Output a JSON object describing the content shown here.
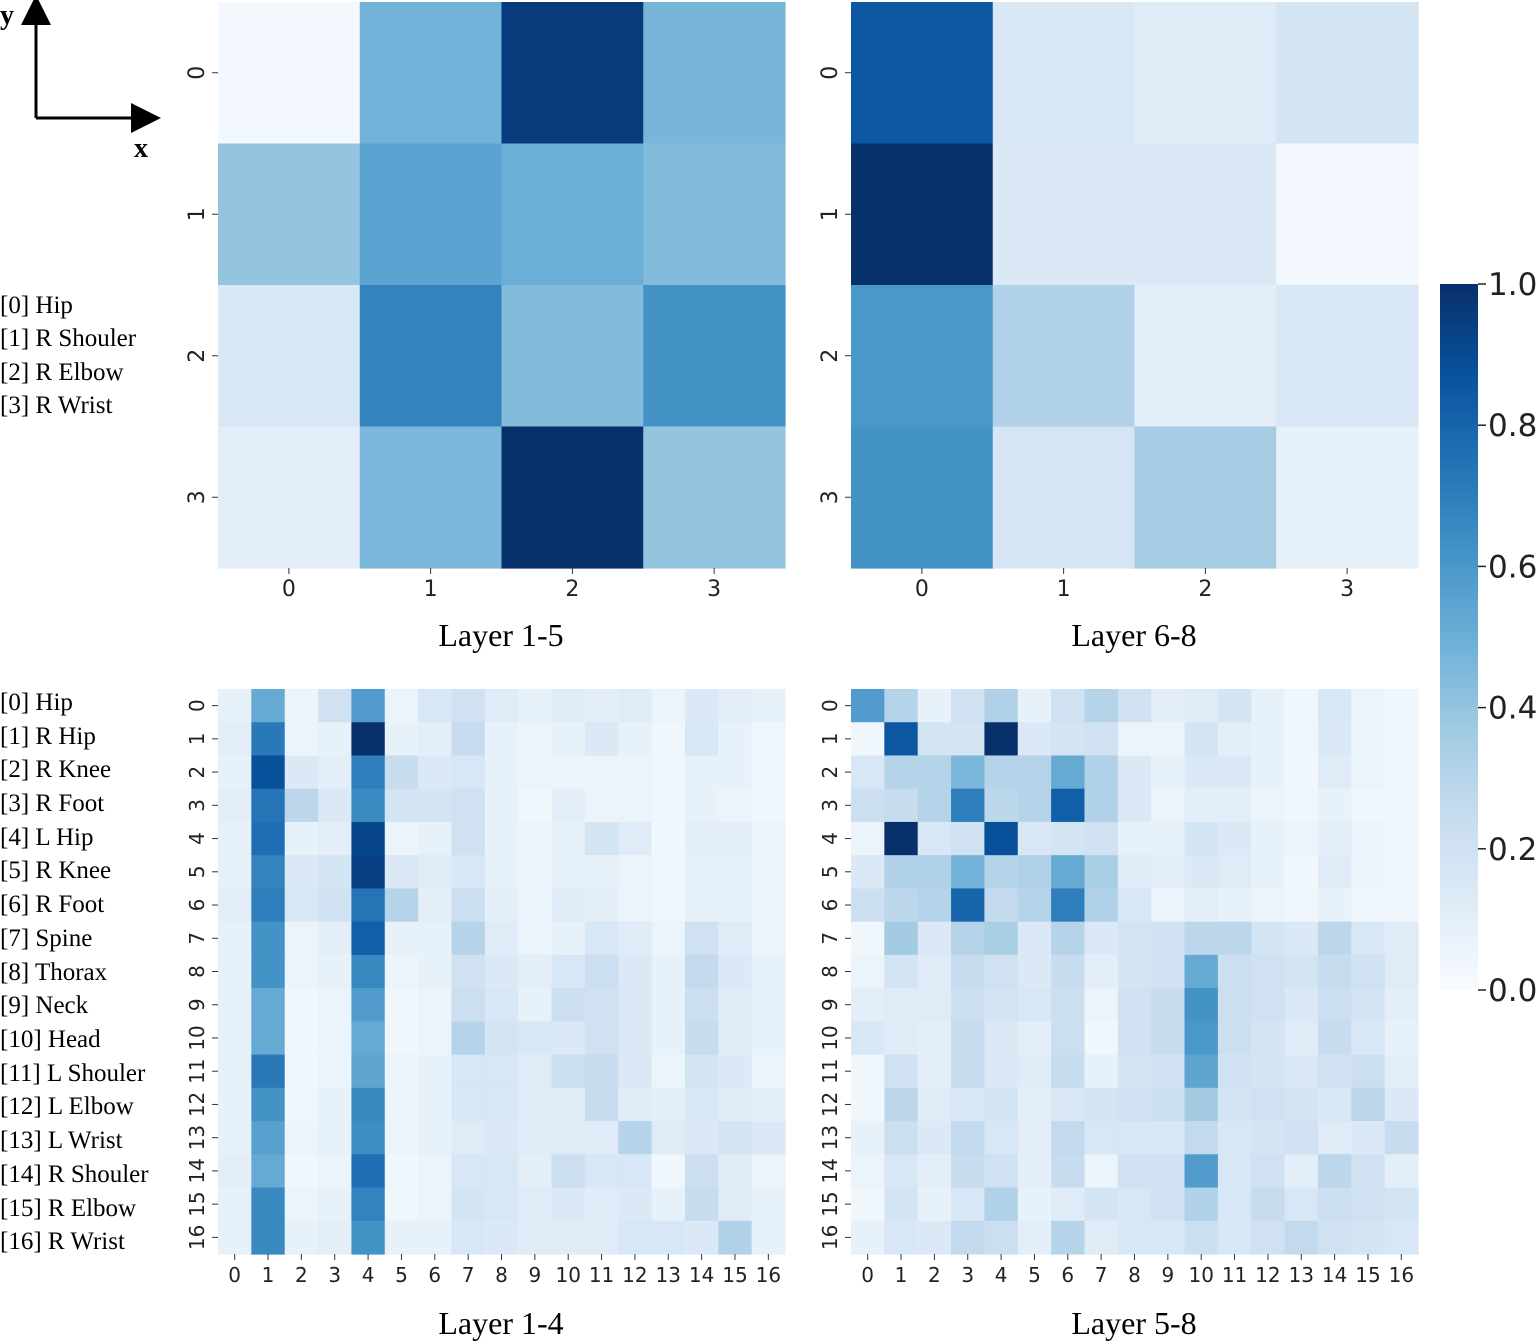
{
  "axis_indicator": {
    "y_label": "y",
    "x_label": "x"
  },
  "legends": {
    "small": [
      "[0] Hip",
      "[1] R Shouler",
      "[2] R Elbow",
      "[3] R Wrist"
    ],
    "large": [
      "[0] Hip",
      "[1] R Hip",
      "[2] R Knee",
      "[3] R Foot",
      "[4] L Hip",
      "[5] R Knee",
      "[6] R Foot",
      "[7] Spine",
      "[8] Thorax",
      "[9] Neck",
      "[10] Head",
      "[11] L Shouler",
      "[12] L Elbow",
      "[13] L Wrist",
      "[14] R Shouler",
      "[15] R Elbow",
      "[16] R Wrist"
    ]
  },
  "colorbar": {
    "min": 0.0,
    "max": 1.0,
    "ticks": [
      {
        "v": 1.0,
        "label": "1.0"
      },
      {
        "v": 0.8,
        "label": "0.8"
      },
      {
        "v": 0.6,
        "label": "0.6"
      },
      {
        "v": 0.4,
        "label": "0.4"
      },
      {
        "v": 0.2,
        "label": "0.2"
      },
      {
        "v": 0.0,
        "label": "0.0"
      }
    ],
    "colors": [
      "#f7fbff",
      "#deebf7",
      "#c6dbef",
      "#9ecae1",
      "#6baed6",
      "#4292c6",
      "#2171b5",
      "#08519c",
      "#08306b"
    ]
  },
  "chart_data": [
    {
      "type": "heatmap",
      "title": "Layer 1-5",
      "x_ticks": [
        "0",
        "1",
        "2",
        "3"
      ],
      "y_ticks": [
        "0",
        "1",
        "2",
        "3"
      ],
      "values": [
        [
          0.02,
          0.48,
          0.96,
          0.47
        ],
        [
          0.4,
          0.55,
          0.5,
          0.44
        ],
        [
          0.15,
          0.68,
          0.44,
          0.62
        ],
        [
          0.1,
          0.46,
          1.0,
          0.4
        ]
      ]
    },
    {
      "type": "heatmap",
      "title": "Layer 6-8",
      "x_ticks": [
        "0",
        "1",
        "2",
        "3"
      ],
      "y_ticks": [
        "0",
        "1",
        "2",
        "3"
      ],
      "values": [
        [
          0.85,
          0.15,
          0.12,
          0.18
        ],
        [
          1.0,
          0.14,
          0.14,
          0.03
        ],
        [
          0.6,
          0.32,
          0.1,
          0.16
        ],
        [
          0.62,
          0.17,
          0.35,
          0.08
        ]
      ]
    },
    {
      "type": "heatmap",
      "title": "Layer 1-4",
      "x_ticks": [
        "0",
        "1",
        "2",
        "3",
        "4",
        "5",
        "6",
        "7",
        "8",
        "9",
        "10",
        "11",
        "12",
        "13",
        "14",
        "15",
        "16"
      ],
      "y_ticks": [
        "0",
        "1",
        "2",
        "3",
        "4",
        "5",
        "6",
        "7",
        "8",
        "9",
        "10",
        "11",
        "12",
        "13",
        "14",
        "15",
        "16"
      ],
      "values": [
        [
          0.08,
          0.52,
          0.06,
          0.2,
          0.58,
          0.06,
          0.16,
          0.2,
          0.12,
          0.08,
          0.12,
          0.1,
          0.12,
          0.06,
          0.14,
          0.1,
          0.08
        ],
        [
          0.1,
          0.72,
          0.06,
          0.08,
          1.0,
          0.08,
          0.1,
          0.25,
          0.08,
          0.06,
          0.08,
          0.14,
          0.08,
          0.04,
          0.16,
          0.08,
          0.04
        ],
        [
          0.08,
          0.88,
          0.14,
          0.1,
          0.7,
          0.24,
          0.14,
          0.16,
          0.08,
          0.06,
          0.06,
          0.06,
          0.06,
          0.04,
          0.08,
          0.08,
          0.04
        ],
        [
          0.1,
          0.74,
          0.28,
          0.14,
          0.65,
          0.18,
          0.18,
          0.2,
          0.08,
          0.04,
          0.1,
          0.06,
          0.06,
          0.04,
          0.08,
          0.06,
          0.04
        ],
        [
          0.08,
          0.76,
          0.08,
          0.1,
          0.92,
          0.06,
          0.08,
          0.2,
          0.08,
          0.06,
          0.08,
          0.18,
          0.12,
          0.04,
          0.1,
          0.1,
          0.06
        ],
        [
          0.08,
          0.68,
          0.14,
          0.18,
          0.94,
          0.14,
          0.12,
          0.16,
          0.08,
          0.06,
          0.08,
          0.08,
          0.06,
          0.04,
          0.08,
          0.08,
          0.06
        ],
        [
          0.1,
          0.7,
          0.16,
          0.2,
          0.74,
          0.3,
          0.1,
          0.22,
          0.1,
          0.06,
          0.12,
          0.1,
          0.06,
          0.04,
          0.08,
          0.08,
          0.06
        ],
        [
          0.08,
          0.62,
          0.06,
          0.1,
          0.82,
          0.08,
          0.08,
          0.3,
          0.12,
          0.06,
          0.08,
          0.16,
          0.12,
          0.06,
          0.2,
          0.12,
          0.06
        ],
        [
          0.08,
          0.62,
          0.06,
          0.08,
          0.66,
          0.06,
          0.08,
          0.2,
          0.14,
          0.1,
          0.16,
          0.22,
          0.14,
          0.08,
          0.26,
          0.14,
          0.08
        ],
        [
          0.08,
          0.52,
          0.04,
          0.06,
          0.58,
          0.04,
          0.06,
          0.22,
          0.16,
          0.08,
          0.22,
          0.2,
          0.14,
          0.08,
          0.22,
          0.12,
          0.08
        ],
        [
          0.08,
          0.52,
          0.04,
          0.06,
          0.52,
          0.04,
          0.06,
          0.3,
          0.18,
          0.16,
          0.14,
          0.2,
          0.14,
          0.08,
          0.24,
          0.12,
          0.08
        ],
        [
          0.08,
          0.72,
          0.04,
          0.06,
          0.54,
          0.06,
          0.08,
          0.16,
          0.16,
          0.12,
          0.22,
          0.24,
          0.14,
          0.06,
          0.18,
          0.14,
          0.06
        ],
        [
          0.08,
          0.62,
          0.04,
          0.08,
          0.66,
          0.06,
          0.08,
          0.16,
          0.16,
          0.12,
          0.12,
          0.24,
          0.12,
          0.1,
          0.16,
          0.12,
          0.1
        ],
        [
          0.08,
          0.56,
          0.06,
          0.08,
          0.64,
          0.06,
          0.08,
          0.12,
          0.14,
          0.12,
          0.12,
          0.12,
          0.3,
          0.12,
          0.14,
          0.18,
          0.14
        ],
        [
          0.1,
          0.52,
          0.04,
          0.06,
          0.76,
          0.04,
          0.06,
          0.16,
          0.16,
          0.1,
          0.22,
          0.16,
          0.16,
          0.04,
          0.22,
          0.12,
          0.06
        ],
        [
          0.08,
          0.66,
          0.06,
          0.08,
          0.68,
          0.04,
          0.06,
          0.18,
          0.16,
          0.12,
          0.14,
          0.12,
          0.14,
          0.08,
          0.24,
          0.12,
          0.08
        ],
        [
          0.08,
          0.66,
          0.08,
          0.1,
          0.62,
          0.08,
          0.08,
          0.16,
          0.14,
          0.12,
          0.12,
          0.12,
          0.16,
          0.16,
          0.14,
          0.32,
          0.08
        ]
      ]
    },
    {
      "type": "heatmap",
      "title": "Layer 5-8",
      "x_ticks": [
        "0",
        "1",
        "2",
        "3",
        "4",
        "5",
        "6",
        "7",
        "8",
        "9",
        "10",
        "11",
        "12",
        "13",
        "14",
        "15",
        "16"
      ],
      "y_ticks": [
        "0",
        "1",
        "2",
        "3",
        "4",
        "5",
        "6",
        "7",
        "8",
        "9",
        "10",
        "11",
        "12",
        "13",
        "14",
        "15",
        "16"
      ],
      "values": [
        [
          0.58,
          0.3,
          0.08,
          0.2,
          0.32,
          0.08,
          0.2,
          0.3,
          0.2,
          0.1,
          0.12,
          0.18,
          0.08,
          0.04,
          0.16,
          0.06,
          0.04
        ],
        [
          0.04,
          0.85,
          0.18,
          0.18,
          1.0,
          0.14,
          0.18,
          0.2,
          0.06,
          0.06,
          0.18,
          0.1,
          0.08,
          0.04,
          0.14,
          0.06,
          0.04
        ],
        [
          0.16,
          0.3,
          0.3,
          0.46,
          0.3,
          0.3,
          0.52,
          0.32,
          0.14,
          0.08,
          0.14,
          0.14,
          0.08,
          0.04,
          0.12,
          0.06,
          0.04
        ],
        [
          0.22,
          0.24,
          0.3,
          0.7,
          0.28,
          0.3,
          0.82,
          0.32,
          0.14,
          0.06,
          0.1,
          0.1,
          0.06,
          0.04,
          0.08,
          0.04,
          0.04
        ],
        [
          0.06,
          1.0,
          0.16,
          0.2,
          0.88,
          0.16,
          0.18,
          0.2,
          0.08,
          0.08,
          0.18,
          0.14,
          0.08,
          0.06,
          0.1,
          0.06,
          0.04
        ],
        [
          0.14,
          0.32,
          0.32,
          0.48,
          0.3,
          0.32,
          0.52,
          0.34,
          0.12,
          0.1,
          0.14,
          0.12,
          0.08,
          0.04,
          0.12,
          0.06,
          0.04
        ],
        [
          0.22,
          0.28,
          0.3,
          0.8,
          0.26,
          0.3,
          0.7,
          0.32,
          0.16,
          0.06,
          0.1,
          0.08,
          0.06,
          0.04,
          0.08,
          0.04,
          0.04
        ],
        [
          0.04,
          0.36,
          0.14,
          0.3,
          0.34,
          0.14,
          0.3,
          0.14,
          0.18,
          0.2,
          0.28,
          0.28,
          0.18,
          0.14,
          0.28,
          0.16,
          0.12
        ],
        [
          0.06,
          0.18,
          0.12,
          0.24,
          0.2,
          0.14,
          0.24,
          0.1,
          0.18,
          0.2,
          0.52,
          0.22,
          0.2,
          0.18,
          0.24,
          0.2,
          0.12
        ],
        [
          0.1,
          0.12,
          0.12,
          0.22,
          0.18,
          0.16,
          0.22,
          0.06,
          0.2,
          0.24,
          0.62,
          0.22,
          0.2,
          0.14,
          0.22,
          0.18,
          0.1
        ],
        [
          0.16,
          0.12,
          0.1,
          0.24,
          0.14,
          0.1,
          0.22,
          0.04,
          0.2,
          0.24,
          0.6,
          0.22,
          0.18,
          0.12,
          0.24,
          0.16,
          0.08
        ],
        [
          0.04,
          0.2,
          0.1,
          0.24,
          0.14,
          0.12,
          0.24,
          0.08,
          0.18,
          0.2,
          0.54,
          0.2,
          0.18,
          0.14,
          0.2,
          0.22,
          0.1
        ],
        [
          0.04,
          0.28,
          0.12,
          0.16,
          0.18,
          0.1,
          0.14,
          0.18,
          0.2,
          0.22,
          0.36,
          0.18,
          0.2,
          0.18,
          0.16,
          0.28,
          0.14
        ],
        [
          0.08,
          0.22,
          0.14,
          0.26,
          0.16,
          0.1,
          0.26,
          0.16,
          0.16,
          0.16,
          0.26,
          0.16,
          0.18,
          0.2,
          0.12,
          0.14,
          0.24
        ],
        [
          0.06,
          0.16,
          0.1,
          0.24,
          0.2,
          0.1,
          0.24,
          0.06,
          0.2,
          0.2,
          0.58,
          0.16,
          0.2,
          0.1,
          0.28,
          0.2,
          0.1
        ],
        [
          0.04,
          0.18,
          0.08,
          0.16,
          0.32,
          0.08,
          0.12,
          0.18,
          0.16,
          0.2,
          0.32,
          0.16,
          0.24,
          0.16,
          0.22,
          0.2,
          0.18
        ],
        [
          0.08,
          0.16,
          0.14,
          0.26,
          0.22,
          0.1,
          0.3,
          0.12,
          0.16,
          0.16,
          0.22,
          0.16,
          0.2,
          0.26,
          0.2,
          0.18,
          0.16
        ]
      ]
    }
  ]
}
